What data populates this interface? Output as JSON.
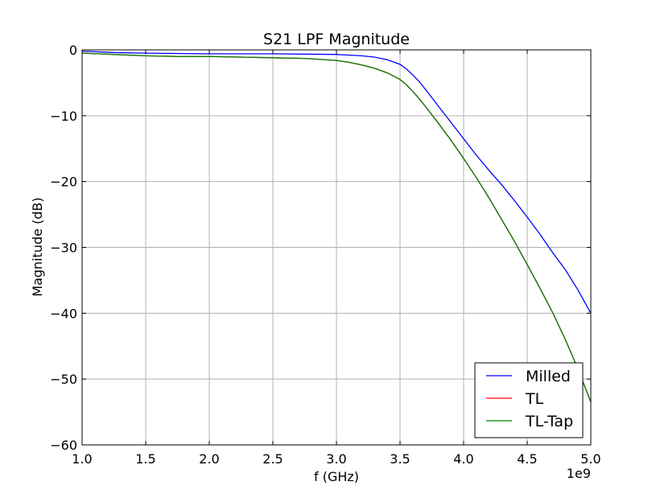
{
  "chart_data": {
    "type": "line",
    "title": "S21 LPF Magnitude",
    "xlabel": "f (GHz)",
    "ylabel": "Magnitude (dB)",
    "x_offset_label": "1e9",
    "xlim": [
      1.0,
      5.0
    ],
    "ylim": [
      -60,
      0
    ],
    "xticks": [
      1.0,
      1.5,
      2.0,
      2.5,
      3.0,
      3.5,
      4.0,
      4.5,
      5.0
    ],
    "xtick_labels": [
      "1.0",
      "1.5",
      "2.0",
      "2.5",
      "3.0",
      "3.5",
      "4.0",
      "4.5",
      "5.0"
    ],
    "yticks": [
      0,
      -10,
      -20,
      -30,
      -40,
      -50,
      -60
    ],
    "ytick_labels": [
      "0",
      "−10",
      "−20",
      "−30",
      "−40",
      "−50",
      "−60"
    ],
    "grid": true,
    "legend_position": "bottom-right",
    "series": [
      {
        "name": "Milled",
        "color": "#0000ff",
        "x": [
          1.0,
          1.25,
          1.5,
          1.75,
          2.0,
          2.25,
          2.5,
          2.75,
          3.0,
          3.1,
          3.2,
          3.3,
          3.4,
          3.5,
          3.55,
          3.6,
          3.65,
          3.7,
          3.8,
          3.9,
          4.0,
          4.1,
          4.2,
          4.3,
          4.4,
          4.5,
          4.6,
          4.7,
          4.8,
          4.9,
          5.0
        ],
        "y": [
          -0.2,
          -0.4,
          -0.5,
          -0.55,
          -0.6,
          -0.6,
          -0.6,
          -0.65,
          -0.7,
          -0.8,
          -0.9,
          -1.1,
          -1.5,
          -2.2,
          -2.9,
          -3.8,
          -4.8,
          -6.0,
          -8.5,
          -11.0,
          -13.5,
          -16.0,
          -18.3,
          -20.5,
          -22.9,
          -25.4,
          -28.0,
          -30.8,
          -33.4,
          -36.5,
          -40.0
        ]
      },
      {
        "name": "TL",
        "color": "#ff0000",
        "x": [
          1.0,
          1.25,
          1.5,
          1.75,
          2.0,
          2.25,
          2.5,
          2.75,
          3.0,
          3.1,
          3.2,
          3.3,
          3.4,
          3.5,
          3.55,
          3.6,
          3.65,
          3.7,
          3.8,
          3.9,
          4.0,
          4.1,
          4.2,
          4.3,
          4.4,
          4.5,
          4.6,
          4.7,
          4.8,
          4.9,
          5.0
        ],
        "y": [
          -0.5,
          -0.7,
          -0.9,
          -1.0,
          -1.0,
          -1.1,
          -1.2,
          -1.3,
          -1.6,
          -1.9,
          -2.3,
          -2.8,
          -3.5,
          -4.5,
          -5.3,
          -6.3,
          -7.4,
          -8.6,
          -11.1,
          -13.7,
          -16.5,
          -19.4,
          -22.5,
          -25.8,
          -29.1,
          -32.6,
          -36.2,
          -39.9,
          -44.0,
          -48.5,
          -53.5
        ]
      },
      {
        "name": "TL-Tap",
        "color": "#007f00",
        "x": [
          1.0,
          1.25,
          1.5,
          1.75,
          2.0,
          2.25,
          2.5,
          2.75,
          3.0,
          3.1,
          3.2,
          3.3,
          3.4,
          3.5,
          3.55,
          3.6,
          3.65,
          3.7,
          3.8,
          3.9,
          4.0,
          4.1,
          4.2,
          4.3,
          4.4,
          4.5,
          4.6,
          4.7,
          4.8,
          4.9,
          5.0
        ],
        "y": [
          -0.5,
          -0.7,
          -0.9,
          -1.0,
          -1.0,
          -1.1,
          -1.2,
          -1.3,
          -1.6,
          -1.9,
          -2.3,
          -2.8,
          -3.5,
          -4.5,
          -5.3,
          -6.3,
          -7.4,
          -8.6,
          -11.1,
          -13.7,
          -16.5,
          -19.4,
          -22.5,
          -25.8,
          -29.1,
          -32.6,
          -36.2,
          -39.9,
          -44.0,
          -48.5,
          -53.5
        ]
      }
    ]
  }
}
